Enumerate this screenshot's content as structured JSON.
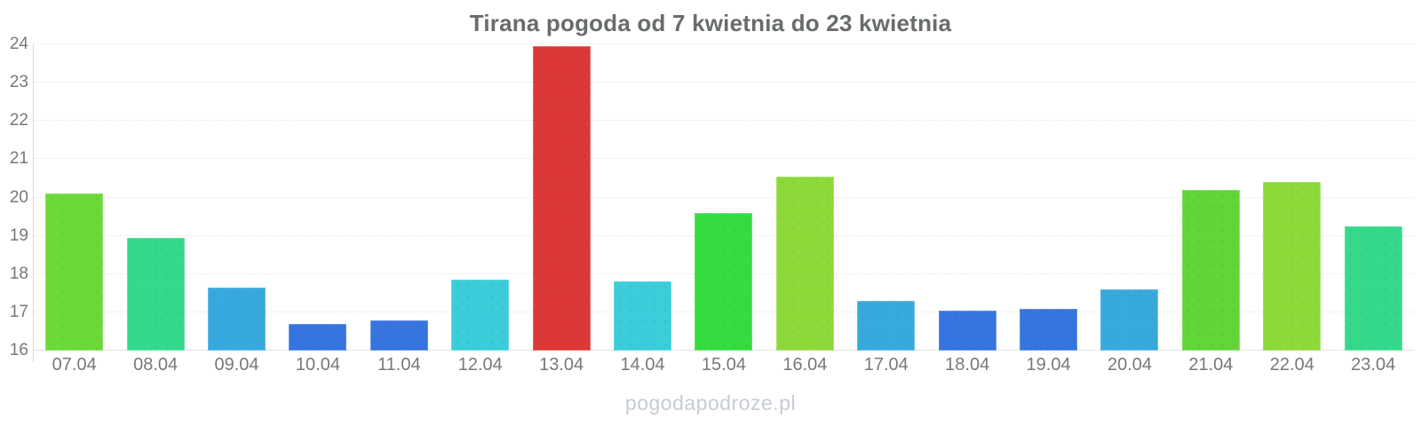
{
  "title": "Tirana pogoda od 7 kwietnia do 23 kwietnia",
  "watermark": "pogodapodroze.pl",
  "colors": {
    "title_text": "#686c6e",
    "tick_text": "#76797c",
    "watermark_text": "#c6ccd2",
    "axis_line": "#d9d9d9",
    "gridline": "#e7e7e7"
  },
  "chart_data": {
    "type": "bar",
    "title": "Tirana pogoda od 7 kwietnia do 23 kwietnia",
    "xlabel": "",
    "ylabel": "",
    "ylim": [
      16,
      24
    ],
    "yticks": [
      16,
      17,
      18,
      19,
      20,
      21,
      22,
      23,
      24
    ],
    "grid": true,
    "legend": false,
    "categories": [
      "07.04",
      "08.04",
      "09.04",
      "10.04",
      "11.04",
      "12.04",
      "13.04",
      "14.04",
      "15.04",
      "16.04",
      "17.04",
      "18.04",
      "19.04",
      "20.04",
      "21.04",
      "22.04",
      "23.04"
    ],
    "values": [
      20.1,
      18.95,
      17.65,
      16.7,
      16.8,
      17.85,
      23.95,
      17.8,
      19.6,
      20.55,
      17.3,
      17.05,
      17.1,
      17.6,
      20.2,
      20.4,
      19.25
    ],
    "bar_colors": [
      "#6cd93a",
      "#35d98b",
      "#38a9dc",
      "#3674de",
      "#3674de",
      "#3bcdd9",
      "#dc3838",
      "#3bcdd9",
      "#35dc41",
      "#8ed93a",
      "#38a9dc",
      "#3674de",
      "#3674de",
      "#38a9dc",
      "#62d538",
      "#8ed93a",
      "#35d98b"
    ],
    "series_note": "daily temperature bars, degrees Celsius"
  }
}
